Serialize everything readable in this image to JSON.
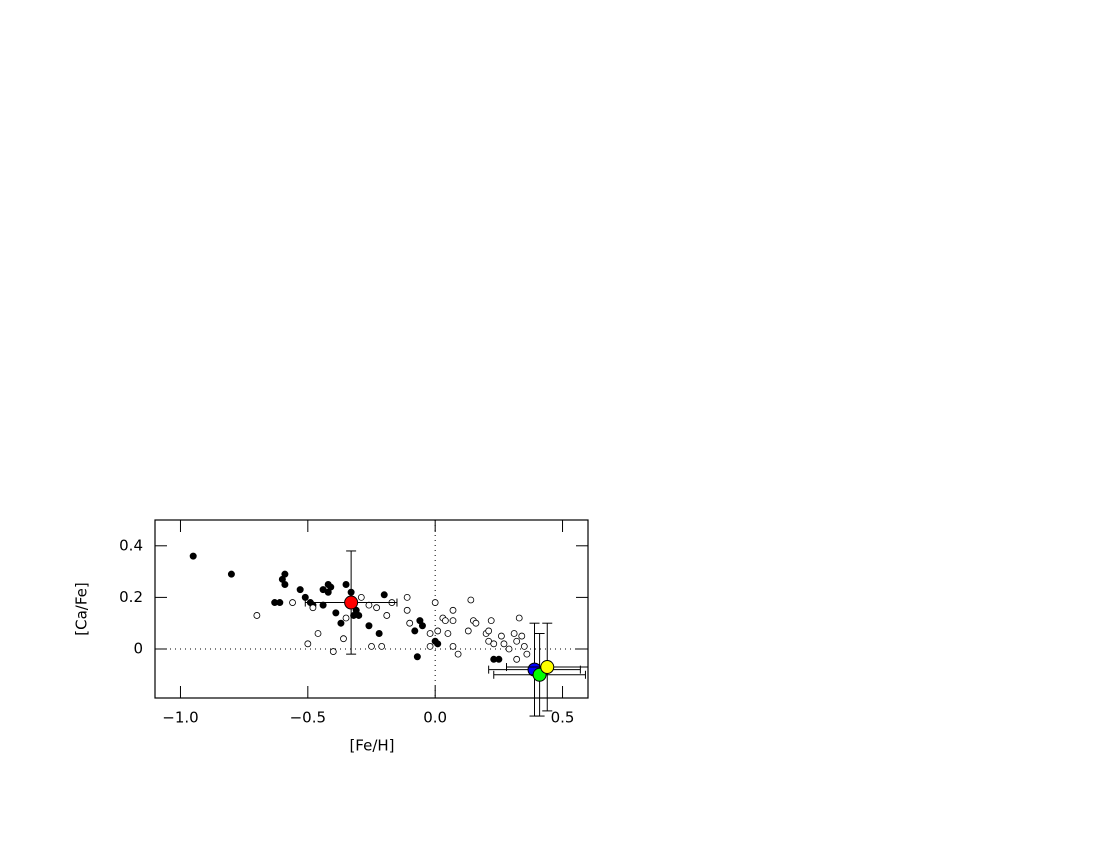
{
  "chart_data": {
    "type": "scatter",
    "xlabel": "[Fe/H]",
    "ylabel": "[Ca/Fe]",
    "xlim": [
      -1.1,
      0.6
    ],
    "ylim": [
      -0.19,
      0.5
    ],
    "xticks": [
      {
        "value": -1.0,
        "label": "−1.0"
      },
      {
        "value": -0.5,
        "label": "−0.5"
      },
      {
        "value": 0.0,
        "label": "0.0"
      },
      0.5
    ],
    "yticks": [
      0,
      0.2,
      0.4
    ],
    "reference_lines": {
      "x": [
        0
      ],
      "y": [
        0
      ]
    },
    "series": [
      {
        "color": "#000000",
        "marker": "filled",
        "x": [
          -0.95,
          -0.8,
          -0.59,
          -0.6,
          -0.59,
          -0.63,
          -0.61,
          -0.53,
          -0.51,
          -0.49,
          -0.48,
          -0.44,
          -0.44,
          -0.42,
          -0.41,
          -0.42,
          -0.39,
          -0.37,
          -0.35,
          -0.33,
          -0.32,
          -0.31,
          -0.3,
          -0.26,
          -0.22,
          -0.2,
          -0.08,
          -0.06,
          -0.05,
          -0.07,
          0.0,
          0.01,
          0.23,
          0.25
        ],
        "values": [
          0.36,
          0.29,
          0.29,
          0.27,
          0.25,
          0.18,
          0.18,
          0.23,
          0.2,
          0.18,
          0.17,
          0.17,
          0.23,
          0.25,
          0.24,
          0.22,
          0.14,
          0.1,
          0.25,
          0.22,
          0.13,
          0.15,
          0.13,
          0.09,
          0.06,
          0.21,
          0.07,
          0.11,
          0.09,
          -0.03,
          0.03,
          0.02,
          -0.04,
          -0.04
        ]
      },
      {
        "color": "#000000",
        "marker": "open",
        "x": [
          -0.7,
          -0.56,
          -0.5,
          -0.48,
          -0.46,
          -0.4,
          -0.36,
          -0.35,
          -0.29,
          -0.26,
          -0.25,
          -0.23,
          -0.21,
          -0.19,
          -0.17,
          -0.11,
          -0.11,
          -0.1,
          -0.02,
          -0.02,
          0.0,
          0.01,
          0.03,
          0.04,
          0.07,
          0.07,
          0.05,
          0.07,
          0.09,
          0.13,
          0.14,
          0.15,
          0.16,
          0.2,
          0.21,
          0.21,
          0.22,
          0.23,
          0.26,
          0.27,
          0.29,
          0.31,
          0.32,
          0.33,
          0.34,
          0.32,
          0.35,
          0.36
        ],
        "values": [
          0.13,
          0.18,
          0.02,
          0.16,
          0.06,
          -0.01,
          0.04,
          0.12,
          0.2,
          0.17,
          0.01,
          0.16,
          0.01,
          0.13,
          0.18,
          0.2,
          0.15,
          0.1,
          0.06,
          0.01,
          0.18,
          0.07,
          0.12,
          0.11,
          0.11,
          0.15,
          0.06,
          0.01,
          -0.02,
          0.07,
          0.19,
          0.11,
          0.1,
          0.06,
          0.07,
          0.03,
          0.11,
          0.02,
          0.05,
          0.02,
          0.0,
          0.06,
          0.03,
          0.12,
          0.05,
          -0.04,
          0.01,
          -0.02
        ]
      },
      {
        "color": "#ff0000",
        "marker": "big",
        "x": [
          -0.33
        ],
        "values": [
          0.18
        ],
        "xerr": [
          0.18
        ],
        "yerr": [
          0.2
        ]
      },
      {
        "color": "#0000ff",
        "marker": "big",
        "x": [
          0.39
        ],
        "values": [
          -0.08
        ],
        "xerr": [
          0.18
        ],
        "yerr": [
          0.18
        ]
      },
      {
        "color": "#00ff00",
        "marker": "big",
        "x": [
          0.41
        ],
        "values": [
          -0.1
        ],
        "xerr": [
          0.18
        ],
        "yerr": [
          0.16
        ]
      },
      {
        "color": "#ffff00",
        "marker": "big",
        "x": [
          0.44
        ],
        "values": [
          -0.07
        ],
        "xerr": [
          0.16
        ],
        "yerr": [
          0.17
        ]
      }
    ]
  }
}
